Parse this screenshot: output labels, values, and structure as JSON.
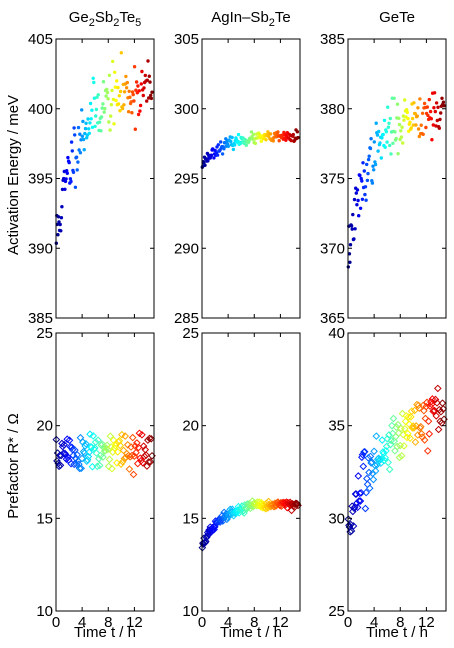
{
  "figure": {
    "ylabel_top": "Activation Energy / meV",
    "ylabel_bottom": "Prefactor R* / Ω",
    "xlabel": "Time t / h"
  },
  "chart_data": [
    {
      "type": "scatter",
      "marker": "dot",
      "title": "Ge2Sb2Te5",
      "title_parts": [
        [
          "Ge",
          ""
        ],
        [
          "2",
          "sub"
        ],
        [
          "Sb",
          ""
        ],
        [
          "2",
          "sub"
        ],
        [
          "Te",
          ""
        ],
        [
          "5",
          "sub"
        ]
      ],
      "xlim": [
        0,
        15
      ],
      "xticks": [
        0,
        4,
        8,
        12
      ],
      "show_xticklabels": false,
      "ylim": [
        385,
        405
      ],
      "yticks": [
        385,
        390,
        395,
        400,
        405
      ],
      "ylabel": "Activation Energy / meV",
      "xlabel": "",
      "model": {
        "base": 390.5,
        "amp": 11.0,
        "tau": 3.2,
        "noise": 1.1,
        "seed": 11,
        "n": 150
      },
      "series": [
        {
          "x": [
            0,
            1,
            2,
            3,
            4,
            6,
            8,
            10,
            12,
            14.5
          ],
          "values": [
            391,
            394,
            396,
            397.5,
            398.5,
            399.8,
            400.6,
            401.2,
            401.5,
            401.8
          ]
        }
      ]
    },
    {
      "type": "scatter",
      "marker": "dot",
      "title": "AgIn-Sb2Te",
      "title_parts": [
        [
          "AgIn–Sb",
          ""
        ],
        [
          "2",
          "sub"
        ],
        [
          "Te",
          ""
        ]
      ],
      "xlim": [
        0,
        15
      ],
      "xticks": [
        0,
        4,
        8,
        12
      ],
      "show_xticklabels": false,
      "ylim": [
        285,
        305
      ],
      "yticks": [
        285,
        290,
        295,
        300,
        305
      ],
      "ylabel": "",
      "xlabel": "",
      "model": {
        "base": 296.0,
        "amp": 2.0,
        "tau": 3.0,
        "noise": 0.2,
        "seed": 23,
        "n": 150
      },
      "series": [
        {
          "x": [
            0,
            1,
            2,
            4,
            6,
            8,
            10,
            12,
            14.5
          ],
          "values": [
            296.0,
            296.7,
            297.0,
            297.3,
            297.5,
            297.7,
            297.8,
            297.9,
            298.0
          ]
        }
      ]
    },
    {
      "type": "scatter",
      "marker": "dot",
      "title": "GeTe",
      "title_parts": [
        [
          "GeTe",
          ""
        ]
      ],
      "xlim": [
        0,
        15
      ],
      "xticks": [
        0,
        4,
        8,
        12
      ],
      "show_xticklabels": false,
      "ylim": [
        365,
        385
      ],
      "yticks": [
        365,
        370,
        375,
        380,
        385
      ],
      "ylabel": "",
      "xlabel": "",
      "model": {
        "base": 369.5,
        "amp": 10.5,
        "tau": 3.4,
        "noise": 0.9,
        "seed": 37,
        "n": 150
      },
      "series": [
        {
          "x": [
            0,
            1,
            2,
            4,
            6,
            8,
            10,
            12,
            14.5
          ],
          "values": [
            369.5,
            373,
            375,
            376.8,
            378,
            378.8,
            379.3,
            379.6,
            379.8
          ]
        }
      ]
    },
    {
      "type": "scatter",
      "marker": "diamond",
      "title": "",
      "xlim": [
        0,
        15
      ],
      "xticks": [
        0,
        4,
        8,
        12
      ],
      "show_xticklabels": true,
      "ylim": [
        10,
        25
      ],
      "yticks": [
        10,
        15,
        20,
        25
      ],
      "ylabel": "Prefactor R* / Ω",
      "xlabel": "Time t / h",
      "model": {
        "base": 18.5,
        "amp": 0.0,
        "tau": 3.0,
        "noise": 0.55,
        "seed": 51,
        "n": 120
      },
      "series": [
        {
          "x": [
            0,
            2,
            4,
            6,
            8,
            10,
            12,
            14.5
          ],
          "values": [
            17.5,
            18.3,
            18.5,
            18.6,
            18.5,
            18.4,
            18.4,
            18.5
          ]
        }
      ]
    },
    {
      "type": "scatter",
      "marker": "diamond",
      "title": "",
      "xlim": [
        0,
        15
      ],
      "xticks": [
        0,
        4,
        8,
        12
      ],
      "show_xticklabels": true,
      "ylim": [
        10,
        25
      ],
      "yticks": [
        10,
        15,
        20,
        25
      ],
      "ylabel": "",
      "xlabel": "Time t / h",
      "model": {
        "base": 13.5,
        "amp": 2.3,
        "tau": 3.0,
        "noise": 0.12,
        "seed": 67,
        "n": 140
      },
      "series": [
        {
          "x": [
            0,
            1,
            2,
            4,
            6,
            8,
            10,
            12,
            14.5
          ],
          "values": [
            13.5,
            14.2,
            14.6,
            15.0,
            15.3,
            15.5,
            15.6,
            15.7,
            15.8
          ]
        }
      ]
    },
    {
      "type": "scatter",
      "marker": "diamond",
      "title": "",
      "xlim": [
        0,
        15
      ],
      "xticks": [
        0,
        4,
        8,
        12
      ],
      "show_xticklabels": true,
      "ylim": [
        25,
        40
      ],
      "yticks": [
        25,
        30,
        35,
        40
      ],
      "ylabel": "",
      "xlabel": "Time t / h",
      "model": {
        "base": 29.5,
        "amp": 7.0,
        "tau": 6.0,
        "noise": 0.7,
        "seed": 83,
        "n": 130
      },
      "series": [
        {
          "x": [
            0,
            1,
            2,
            4,
            6,
            8,
            10,
            12,
            14.5
          ],
          "values": [
            29.5,
            31.5,
            32.5,
            33.5,
            34.2,
            34.8,
            35.3,
            35.8,
            36.3
          ]
        }
      ]
    }
  ]
}
